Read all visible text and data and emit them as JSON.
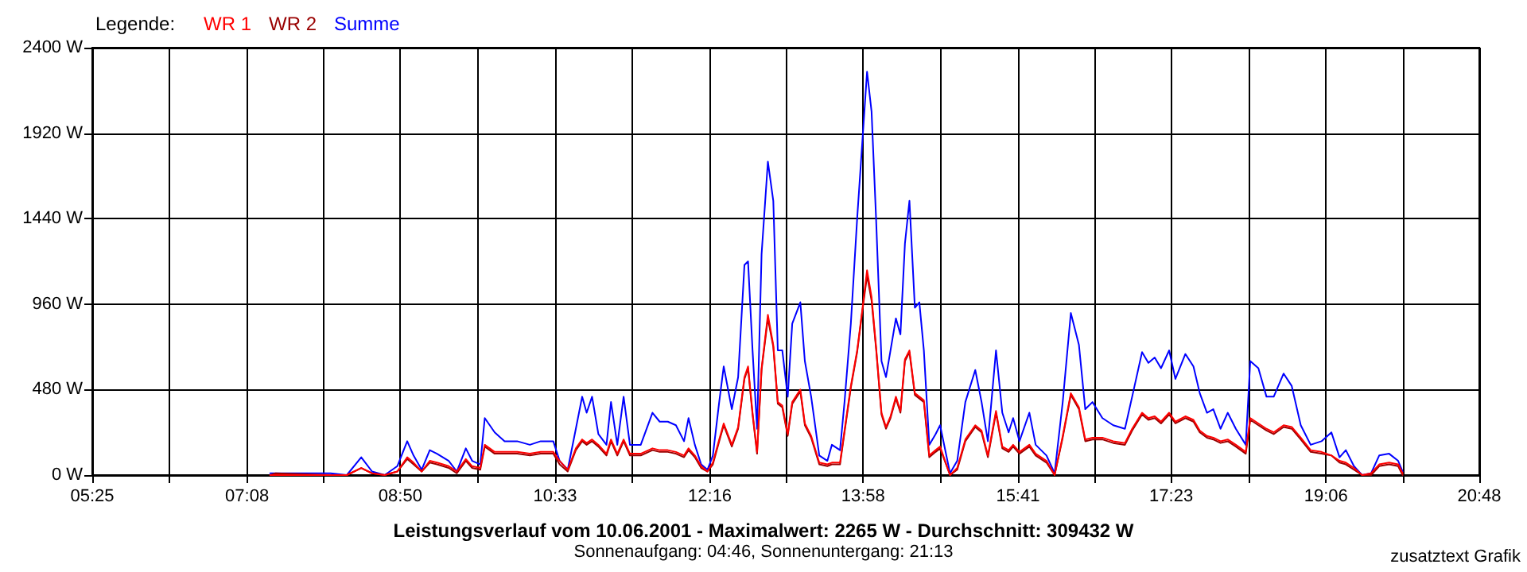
{
  "chart_data": {
    "type": "line",
    "title": "Leistungsverlauf vom 10.06.2001 - Maximalwert: 2265 W - Durchschnitt: 309432 W",
    "subtitle": "Sonnenaufgang: 04:46, Sonnenuntergang: 21:13",
    "annotations": [
      "zusatztext Grafik"
    ],
    "legend_title": "Legende:",
    "legend": "top left",
    "grid": true,
    "marker": "none",
    "line_style": "solid",
    "x": [
      7.39,
      7.45,
      8.06,
      8.24,
      8.4,
      8.52,
      8.66,
      8.8,
      8.91,
      8.98,
      9.07,
      9.16,
      9.24,
      9.37,
      9.46,
      9.56,
      9.63,
      9.72,
      9.77,
      9.88,
      9.99,
      10.13,
      10.27,
      10.39,
      10.53,
      10.6,
      10.69,
      10.78,
      10.85,
      10.9,
      10.96,
      11.03,
      11.12,
      11.17,
      11.24,
      11.31,
      11.38,
      11.5,
      11.63,
      11.71,
      11.8,
      11.89,
      11.98,
      12.03,
      12.1,
      12.17,
      12.24,
      12.3,
      12.37,
      12.42,
      12.51,
      12.58,
      12.65,
      12.69,
      12.74,
      12.79,
      12.84,
      12.91,
      12.97,
      13.02,
      13.07,
      13.13,
      13.18,
      13.27,
      13.32,
      13.39,
      13.48,
      13.57,
      13.62,
      13.71,
      13.76,
      13.83,
      13.9,
      13.96,
      14.01,
      14.06,
      14.11,
      14.17,
      14.22,
      14.27,
      14.33,
      14.38,
      14.43,
      14.48,
      14.54,
      14.59,
      14.64,
      14.7,
      14.77,
      14.82,
      14.93,
      15.01,
      15.1,
      15.21,
      15.28,
      15.35,
      15.44,
      15.51,
      15.58,
      15.63,
      15.7,
      15.81,
      15.88,
      16.0,
      16.09,
      16.18,
      16.27,
      16.36,
      16.43,
      16.51,
      16.62,
      16.74,
      16.87,
      16.95,
      17.06,
      17.13,
      17.2,
      17.27,
      17.36,
      17.43,
      17.54,
      17.63,
      17.7,
      17.78,
      17.85,
      17.93,
      18.01,
      18.1,
      18.21,
      18.26,
      18.35,
      18.44,
      18.52,
      18.63,
      18.72,
      18.82,
      18.93,
      19.05,
      19.16,
      19.25,
      19.32,
      19.41,
      19.5,
      19.6,
      19.69,
      19.8,
      19.9,
      19.95
    ],
    "series": [
      {
        "name": "WR 1",
        "color": "#ff0000",
        "values": [
          0,
          0,
          0,
          0,
          40,
          10,
          0,
          20,
          100,
          70,
          20,
          80,
          70,
          50,
          20,
          90,
          50,
          40,
          170,
          130,
          130,
          130,
          120,
          130,
          130,
          80,
          30,
          150,
          200,
          180,
          200,
          170,
          120,
          200,
          120,
          200,
          120,
          120,
          150,
          140,
          140,
          130,
          110,
          150,
          110,
          50,
          20,
          70,
          200,
          290,
          170,
          270,
          550,
          610,
          350,
          130,
          600,
          900,
          730,
          410,
          390,
          230,
          410,
          480,
          290,
          220,
          70,
          60,
          70,
          70,
          250,
          500,
          700,
          940,
          1150,
          1000,
          720,
          350,
          270,
          330,
          440,
          360,
          650,
          700,
          460,
          440,
          420,
          110,
          140,
          160,
          0,
          40,
          200,
          280,
          250,
          110,
          360,
          160,
          140,
          170,
          130,
          170,
          120,
          80,
          0,
          220,
          460,
          380,
          200,
          210,
          210,
          190,
          180,
          260,
          350,
          320,
          330,
          300,
          350,
          300,
          330,
          310,
          250,
          220,
          210,
          190,
          200,
          170,
          130,
          320,
          290,
          260,
          240,
          280,
          270,
          210,
          140,
          130,
          110,
          80,
          70,
          40,
          0,
          10,
          60,
          70,
          60,
          10
        ]
      },
      {
        "name": "WR 2",
        "color": "#990000",
        "values": [
          0,
          10,
          0,
          0,
          40,
          10,
          0,
          20,
          90,
          60,
          20,
          70,
          60,
          40,
          10,
          80,
          40,
          30,
          160,
          120,
          120,
          120,
          110,
          120,
          120,
          60,
          20,
          140,
          190,
          170,
          190,
          160,
          110,
          190,
          110,
          190,
          110,
          110,
          140,
          130,
          130,
          120,
          100,
          140,
          100,
          40,
          20,
          60,
          190,
          280,
          160,
          260,
          540,
          600,
          340,
          120,
          590,
          880,
          720,
          400,
          380,
          220,
          400,
          470,
          280,
          210,
          60,
          50,
          60,
          60,
          240,
          490,
          690,
          930,
          1120,
          980,
          710,
          340,
          260,
          320,
          430,
          350,
          640,
          690,
          450,
          430,
          410,
          100,
          130,
          150,
          0,
          30,
          190,
          270,
          240,
          100,
          350,
          150,
          130,
          160,
          120,
          160,
          110,
          70,
          0,
          210,
          450,
          370,
          190,
          200,
          200,
          180,
          170,
          250,
          340,
          310,
          320,
          290,
          340,
          290,
          320,
          300,
          240,
          210,
          200,
          180,
          190,
          160,
          120,
          310,
          280,
          250,
          230,
          270,
          260,
          200,
          130,
          120,
          110,
          70,
          60,
          30,
          0,
          0,
          50,
          60,
          50,
          0
        ]
      },
      {
        "name": "Summe",
        "color": "#0000ff",
        "values": [
          10,
          10,
          10,
          0,
          100,
          20,
          0,
          50,
          190,
          110,
          30,
          140,
          120,
          80,
          20,
          150,
          80,
          60,
          320,
          240,
          190,
          190,
          170,
          190,
          190,
          80,
          30,
          260,
          440,
          350,
          440,
          230,
          170,
          410,
          170,
          440,
          170,
          170,
          350,
          300,
          300,
          280,
          190,
          320,
          170,
          60,
          30,
          110,
          410,
          610,
          370,
          550,
          1180,
          1200,
          700,
          260,
          1240,
          1760,
          1540,
          700,
          700,
          440,
          850,
          970,
          640,
          440,
          110,
          80,
          170,
          140,
          410,
          850,
          1440,
          1890,
          2265,
          2040,
          1440,
          640,
          550,
          700,
          880,
          790,
          1300,
          1540,
          940,
          970,
          700,
          170,
          230,
          280,
          10,
          80,
          410,
          590,
          410,
          190,
          700,
          350,
          240,
          320,
          190,
          350,
          170,
          110,
          10,
          410,
          910,
          730,
          370,
          410,
          320,
          280,
          260,
          440,
          690,
          630,
          660,
          600,
          700,
          540,
          680,
          610,
          460,
          350,
          370,
          260,
          350,
          260,
          170,
          640,
          600,
          440,
          440,
          570,
          500,
          280,
          170,
          190,
          240,
          100,
          140,
          50,
          0,
          10,
          110,
          120,
          80,
          20
        ]
      }
    ],
    "xlim": [
      5.4167,
      20.8
    ],
    "xticks": [
      {
        "value": 5.4167,
        "label": "05:25"
      },
      {
        "value": 6.275,
        "label": null
      },
      {
        "value": 7.1333,
        "label": "07:08"
      },
      {
        "value": 7.9833,
        "label": null
      },
      {
        "value": 8.8333,
        "label": "08:50"
      },
      {
        "value": 9.6917,
        "label": null
      },
      {
        "value": 10.55,
        "label": "10:33"
      },
      {
        "value": 11.4083,
        "label": null
      },
      {
        "value": 12.2667,
        "label": "12:16"
      },
      {
        "value": 13.1167,
        "label": null
      },
      {
        "value": 13.9667,
        "label": "13:58"
      },
      {
        "value": 14.825,
        "label": null
      },
      {
        "value": 15.6833,
        "label": "15:41"
      },
      {
        "value": 16.5333,
        "label": null
      },
      {
        "value": 17.3833,
        "label": "17:23"
      },
      {
        "value": 18.2417,
        "label": null
      },
      {
        "value": 19.1,
        "label": "19:06"
      },
      {
        "value": 19.95,
        "label": null
      },
      {
        "value": 20.8,
        "label": "20:48"
      }
    ],
    "ylim": [
      0,
      2400
    ],
    "yticks": [
      {
        "value": 0,
        "label": "0 W"
      },
      {
        "value": 480,
        "label": "480 W"
      },
      {
        "value": 960,
        "label": "960 W"
      },
      {
        "value": 1440,
        "label": "1440 W"
      },
      {
        "value": 1920,
        "label": "1920 W"
      },
      {
        "value": 2400,
        "label": "2400 W"
      }
    ]
  }
}
